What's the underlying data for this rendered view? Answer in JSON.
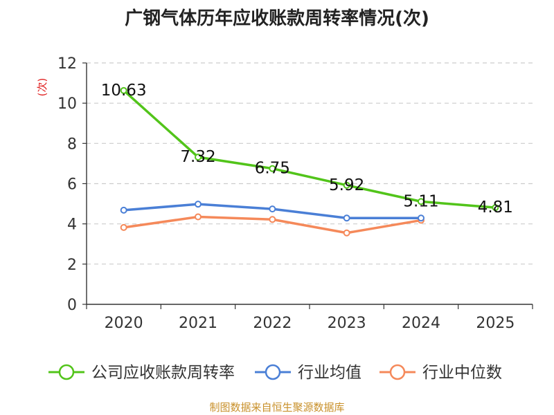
{
  "chart_data": {
    "type": "line",
    "title": "广钢气体历年应收账款周转率情况(次)",
    "ylabel": "(次)",
    "xlabel": "",
    "categories": [
      "2020",
      "2021",
      "2022",
      "2023",
      "2024",
      "2025"
    ],
    "ylim": [
      0,
      12
    ],
    "yticks": [
      0,
      2,
      4,
      6,
      8,
      10,
      12
    ],
    "grid": true,
    "legend_position": "bottom",
    "series": [
      {
        "name": "公司应收账款周转率",
        "color": "#52c41a",
        "values": [
          10.63,
          7.32,
          6.75,
          5.92,
          5.11,
          4.81
        ],
        "labels": [
          "10.63",
          "7.32",
          "6.75",
          "5.92",
          "5.11",
          "4.81"
        ],
        "markers": true
      },
      {
        "name": "行业均值",
        "color": "#4a7fd6",
        "values": [
          4.68,
          4.98,
          4.74,
          4.29,
          4.29,
          null
        ],
        "markers": true
      },
      {
        "name": "行业中位数",
        "color": "#f5895a",
        "values": [
          3.82,
          4.35,
          4.22,
          3.55,
          4.18,
          null
        ],
        "markers": true
      }
    ]
  },
  "source": "制图数据来自恒生聚源数据库",
  "colors": {
    "ylabel": "#e02020",
    "source": "#c8902a",
    "axis": "#333333",
    "grid": "#cccccc"
  }
}
